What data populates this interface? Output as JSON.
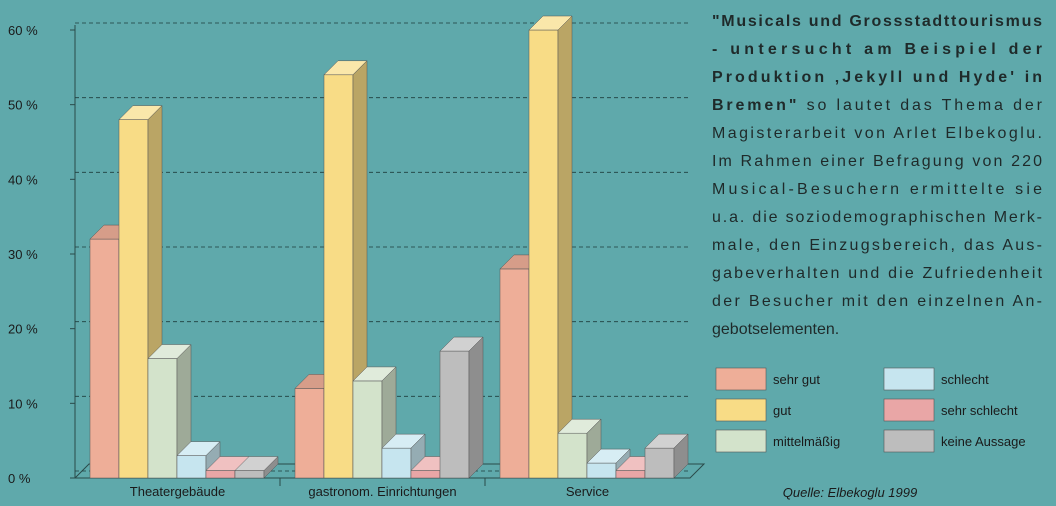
{
  "chart_data": {
    "type": "bar3d",
    "categories": [
      "Theatergebäude",
      "gastronom. Einrichtungen",
      "Service"
    ],
    "series": [
      {
        "name": "sehr gut",
        "color": "#eeae98",
        "values": [
          32,
          12,
          28
        ]
      },
      {
        "name": "gut",
        "color": "#f8dc86",
        "values": [
          48,
          54,
          60
        ]
      },
      {
        "name": "mittelmäßig",
        "color": "#d3e3cb",
        "values": [
          16,
          13,
          6
        ]
      },
      {
        "name": "schlecht",
        "color": "#c6e5ef",
        "values": [
          3,
          4,
          2
        ]
      },
      {
        "name": "sehr schlecht",
        "color": "#e9a6a6",
        "values": [
          1,
          1,
          1
        ]
      },
      {
        "name": "keine Aussage",
        "color": "#bdbdbd",
        "values": [
          1,
          17,
          4
        ]
      }
    ],
    "ylim": [
      0,
      60
    ],
    "yticks": [
      {
        "value": 0,
        "label": "0 %"
      },
      {
        "value": 10,
        "label": "10 %"
      },
      {
        "value": 20,
        "label": "20 %"
      },
      {
        "value": 30,
        "label": "30 %"
      },
      {
        "value": 40,
        "label": "40 %"
      },
      {
        "value": 50,
        "label": "50 %"
      },
      {
        "value": 60,
        "label": "60 %"
      }
    ],
    "grid": true,
    "annotation": {
      "bold": [
        "\"Musicals und Grossstadttourismus",
        "- untersucht am Beispiel der",
        "Produktion ‚Jekyll und Hyde' in",
        "Bremen\""
      ],
      "lines": [
        " so lautet das Thema der",
        "Magisterarbeit von Arlet Elbekoglu.",
        "Im Rahmen einer Befragung von 220",
        "Musical-Besuchern ermittelte sie",
        "u.a. die soziodemographischen Merk-",
        "male, den Einzugsbereich, das Aus-",
        "gabeverhalten und die Zufriedenheit",
        "der Besucher mit den einzelnen An-",
        "gebotselementen."
      ]
    },
    "source": "Quelle: Elbekoglu 1999"
  }
}
